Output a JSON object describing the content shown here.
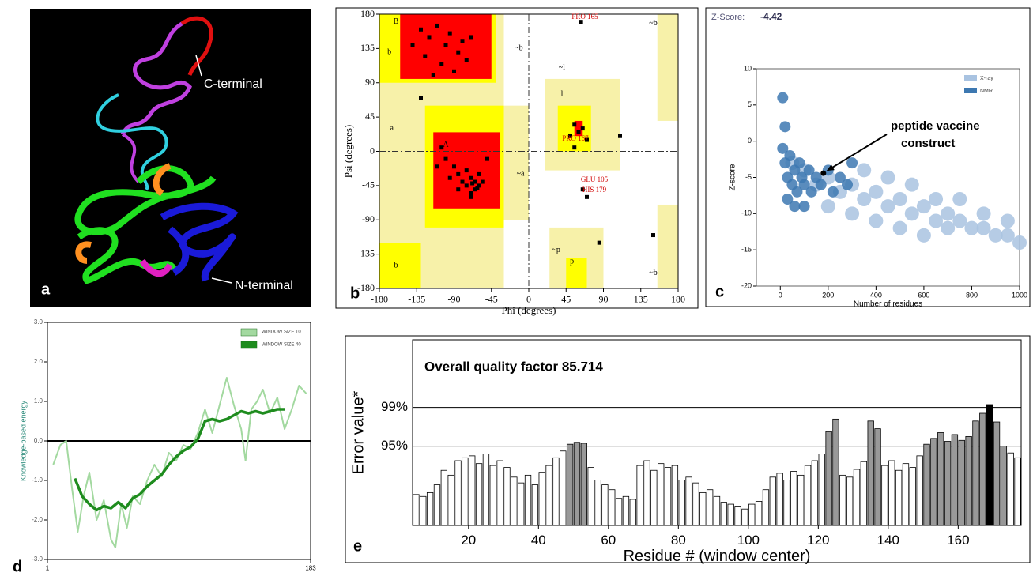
{
  "image_a": {
    "panel_label": "a",
    "annotations": [
      "C-terminal",
      "N-terminal"
    ]
  },
  "chart_data": [
    {
      "type": "scatter",
      "panel_label": "b",
      "xlabel": "Phi (degrees)",
      "ylabel": "Psi (degrees)",
      "xlim": [
        -180,
        180
      ],
      "ylim": [
        -180,
        180
      ],
      "xticks": [
        -180,
        -135,
        -90,
        -45,
        0,
        45,
        90,
        135,
        180
      ],
      "yticks": [
        -180,
        -135,
        -90,
        -45,
        0,
        45,
        90,
        135,
        180
      ],
      "color": "#000000",
      "zero_lines": true,
      "region_labels": [
        "B",
        "b",
        "a",
        "A",
        "~b",
        "~l",
        "l",
        "~a",
        "~p",
        "p",
        "~b",
        "~b",
        "b"
      ],
      "annotations": [
        "PRO 165",
        "PRO 167",
        "GLU 105",
        "HIS 179"
      ],
      "x": [
        -130,
        -120,
        -110,
        -100,
        -95,
        -85,
        -80,
        -75,
        -125,
        -140,
        -70,
        -105,
        -90,
        -115,
        -100,
        -90,
        -85,
        -80,
        -75,
        -70,
        -65,
        -60,
        -65,
        -70,
        -60,
        -55,
        -75,
        -95,
        -85,
        -110,
        -105,
        -70,
        -62,
        -68,
        55,
        60,
        65,
        50,
        70,
        63,
        55,
        65,
        70,
        110,
        150,
        85,
        -50,
        -130
      ],
      "values": [
        160,
        150,
        165,
        140,
        155,
        130,
        145,
        120,
        125,
        140,
        150,
        115,
        105,
        100,
        -10,
        -20,
        -30,
        -40,
        -45,
        -35,
        -40,
        -45,
        -50,
        -55,
        -30,
        -40,
        -25,
        -35,
        -50,
        -20,
        5,
        -60,
        -48,
        -42,
        35,
        25,
        30,
        20,
        15,
        170,
        5,
        -50,
        -60,
        20,
        -110,
        -120,
        -10,
        70
      ]
    },
    {
      "type": "scatter",
      "panel_label": "c",
      "xlabel": "Number of residues",
      "ylabel": "Z-score",
      "z_score_label": "Z-Score:",
      "z_score": -4.42,
      "construct_residues": 180,
      "annotation": [
        "peptide vaccine",
        "construct"
      ],
      "xlim": [
        -100,
        1000
      ],
      "ylim": [
        -20,
        10
      ],
      "xticks": [
        0,
        200,
        400,
        600,
        800,
        1000
      ],
      "yticks": [
        10,
        5,
        0,
        -5,
        -10,
        -15,
        -20
      ],
      "legend": "upper right",
      "series": [
        {
          "name": "X-ray",
          "color": "#a9c3e1",
          "x": [
            50,
            100,
            150,
            200,
            250,
            300,
            350,
            400,
            450,
            500,
            550,
            600,
            650,
            700,
            750,
            800,
            850,
            900,
            950,
            1000,
            300,
            400,
            500,
            600,
            700,
            200,
            350,
            450,
            550,
            650,
            750,
            850,
            950
          ],
          "values": [
            -3,
            -4,
            -6,
            -5,
            -7,
            -6,
            -8,
            -7,
            -9,
            -8,
            -10,
            -9,
            -11,
            -10,
            -11,
            -12,
            -12,
            -13,
            -13,
            -14,
            -10,
            -11,
            -12,
            -13,
            -12,
            -9,
            -4,
            -5,
            -6,
            -8,
            -8,
            -10,
            -11
          ]
        },
        {
          "name": "NMR",
          "color": "#3d78b1",
          "x": [
            10,
            20,
            30,
            40,
            50,
            60,
            70,
            80,
            90,
            100,
            120,
            130,
            150,
            170,
            200,
            220,
            250,
            280,
            300,
            20,
            10,
            30,
            60,
            100
          ],
          "values": [
            -1,
            -3,
            -5,
            -2,
            -6,
            -4,
            -7,
            -3,
            -5,
            -6,
            -4,
            -7,
            -5,
            -6,
            -4,
            -7,
            -5,
            -6,
            -3,
            2,
            6,
            -8,
            -9,
            -9
          ]
        }
      ]
    },
    {
      "type": "line",
      "panel_label": "d",
      "ylabel": "Knowledge-based energy",
      "xlim": [
        1,
        183
      ],
      "ylim": [
        -3,
        3
      ],
      "xticks": [
        1,
        183
      ],
      "yticks": [
        {
          "value": 3,
          "label": "3.0"
        },
        {
          "value": 2,
          "label": "2.0"
        },
        {
          "value": 1,
          "label": "1.0"
        },
        {
          "value": 0,
          "label": "0.0"
        },
        {
          "value": -1,
          "label": "-1.0"
        },
        {
          "value": -2,
          "label": "-2.0"
        },
        {
          "value": -3,
          "label": "-3.0"
        }
      ],
      "legend": "upper right",
      "series": [
        {
          "name": "WINDOW SIZE 10",
          "color": "#a3d9a0",
          "x": [
            5,
            10,
            14,
            18,
            22,
            26,
            30,
            35,
            40,
            45,
            48,
            52,
            56,
            60,
            65,
            70,
            75,
            80,
            85,
            90,
            95,
            100,
            105,
            110,
            115,
            120,
            125,
            130,
            135,
            138,
            142,
            146,
            150,
            155,
            160,
            165,
            170,
            175,
            180
          ],
          "values": [
            -0.6,
            -0.1,
            0,
            -1.2,
            -2.3,
            -1.4,
            -0.8,
            -2.0,
            -1.5,
            -2.5,
            -2.7,
            -1.6,
            -2.2,
            -1.4,
            -1.6,
            -1.0,
            -0.6,
            -0.9,
            -0.3,
            -0.5,
            -0.1,
            -0.2,
            0.2,
            0.8,
            0.2,
            0.9,
            1.6,
            0.9,
            0.3,
            -0.5,
            0.8,
            1.0,
            1.3,
            0.7,
            1.1,
            0.3,
            0.8,
            1.4,
            1.2
          ]
        },
        {
          "name": "WINDOW SIZE 40",
          "color": "#1e8c1e",
          "x": [
            20,
            25,
            30,
            35,
            40,
            45,
            50,
            55,
            60,
            65,
            70,
            75,
            80,
            85,
            90,
            95,
            100,
            105,
            110,
            115,
            120,
            125,
            130,
            135,
            140,
            145,
            150,
            155,
            160,
            165
          ],
          "values": [
            -0.95,
            -1.4,
            -1.6,
            -1.75,
            -1.65,
            -1.7,
            -1.55,
            -1.7,
            -1.45,
            -1.35,
            -1.15,
            -1.0,
            -0.85,
            -0.6,
            -0.4,
            -0.25,
            -0.15,
            0.05,
            0.5,
            0.55,
            0.5,
            0.55,
            0.65,
            0.75,
            0.7,
            0.75,
            0.7,
            0.75,
            0.8,
            0.8
          ]
        }
      ]
    },
    {
      "type": "bar",
      "panel_label": "e",
      "title": "Overall quality factor 85.714",
      "xlabel": "Residue # (window center)",
      "ylabel": "Error value*",
      "xlim": [
        4,
        178
      ],
      "ylim": [
        86.8,
        106
      ],
      "xticks": [
        20,
        40,
        60,
        80,
        100,
        120,
        140,
        160
      ],
      "yticks": [
        {
          "value": 95,
          "label": "95%"
        },
        {
          "value": 99,
          "label": "99%"
        }
      ],
      "grid": true,
      "colors": {
        "ok": "#ffffff",
        "warning": "#999999",
        "error": "#000000"
      },
      "x": [
        5,
        7,
        9,
        11,
        13,
        15,
        17,
        19,
        21,
        23,
        25,
        27,
        29,
        31,
        33,
        35,
        37,
        39,
        41,
        43,
        45,
        47,
        49,
        51,
        53,
        55,
        57,
        59,
        61,
        63,
        65,
        67,
        69,
        71,
        73,
        75,
        77,
        79,
        81,
        83,
        85,
        87,
        89,
        91,
        93,
        95,
        97,
        99,
        101,
        103,
        105,
        107,
        109,
        111,
        113,
        115,
        117,
        119,
        121,
        123,
        125,
        127,
        129,
        131,
        133,
        135,
        137,
        139,
        141,
        143,
        145,
        147,
        149,
        151,
        153,
        155,
        157,
        159,
        161,
        163,
        165,
        167,
        169,
        171,
        173,
        175,
        177
      ],
      "values": [
        90,
        89.8,
        90.2,
        91,
        92.5,
        92,
        93.5,
        93.8,
        94,
        93.2,
        94.2,
        93,
        93.5,
        92.8,
        91.8,
        91.2,
        92,
        91,
        92.3,
        93,
        93.8,
        94.5,
        95.2,
        95.4,
        95.3,
        92.8,
        91.5,
        91,
        90.5,
        89.6,
        89.8,
        89.5,
        93,
        93.5,
        92.5,
        93.2,
        92.8,
        93,
        91.5,
        91.8,
        91.2,
        90.2,
        90.5,
        89.8,
        89.2,
        89,
        88.8,
        88.5,
        89,
        89.3,
        90.5,
        91.8,
        92.2,
        91.5,
        92.4,
        92,
        93,
        93.5,
        94.2,
        96.5,
        97.8,
        92,
        91.8,
        92.6,
        93.4,
        97.6,
        96.8,
        93,
        93.5,
        92.5,
        93.2,
        92.8,
        94,
        95.2,
        95.8,
        96.4,
        95.5,
        96.2,
        95.6,
        96,
        97.6,
        98.4,
        99.3,
        97.5,
        95,
        94.3,
        93.8
      ]
    }
  ]
}
